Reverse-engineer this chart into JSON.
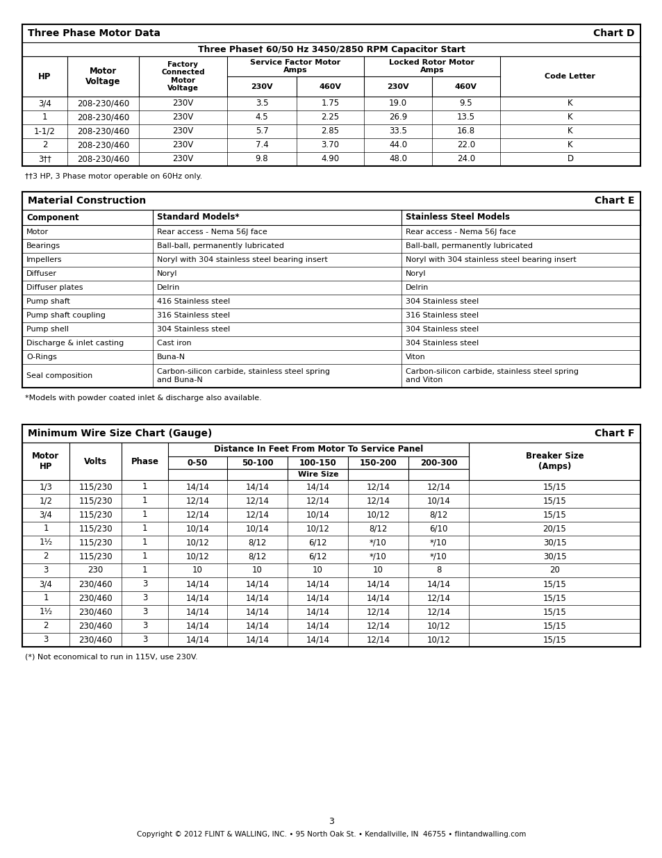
{
  "chart_d": {
    "title": "Three Phase Motor Data",
    "chart_label": "Chart D",
    "subtitle": "Three Phase† 60/50 Hz 3450/2850 RPM Capacitor Start",
    "rows": [
      [
        "3/4",
        "208-230/460",
        "230V",
        "3.5",
        "1.75",
        "19.0",
        "9.5",
        "K"
      ],
      [
        "1",
        "208-230/460",
        "230V",
        "4.5",
        "2.25",
        "26.9",
        "13.5",
        "K"
      ],
      [
        "1-1/2",
        "208-230/460",
        "230V",
        "5.7",
        "2.85",
        "33.5",
        "16.8",
        "K"
      ],
      [
        "2",
        "208-230/460",
        "230V",
        "7.4",
        "3.70",
        "44.0",
        "22.0",
        "K"
      ],
      [
        "3††",
        "208-230/460",
        "230V",
        "9.8",
        "4.90",
        "48.0",
        "24.0",
        "D"
      ]
    ],
    "footnote": "††3 HP, 3 Phase motor operable on 60Hz only."
  },
  "chart_e": {
    "title": "Material Construction",
    "chart_label": "Chart E",
    "col_headers": [
      "Component",
      "Standard Models*",
      "Stainless Steel Models"
    ],
    "rows": [
      [
        "Motor",
        "Rear access - Nema 56J face",
        "Rear access - Nema 56J face"
      ],
      [
        "Bearings",
        "Ball-ball, permanently lubricated",
        "Ball-ball, permanently lubricated"
      ],
      [
        "Impellers",
        "Noryl with 304 stainless steel bearing insert",
        "Noryl with 304 stainless steel bearing insert"
      ],
      [
        "Diffuser",
        "Noryl",
        "Noryl"
      ],
      [
        "Diffuser plates",
        "Delrin",
        "Delrin"
      ],
      [
        "Pump shaft",
        "416 Stainless steel",
        "304 Stainless steel"
      ],
      [
        "Pump shaft coupling",
        "316 Stainless steel",
        "316 Stainless steel"
      ],
      [
        "Pump shell",
        "304 Stainless steel",
        "304 Stainless steel"
      ],
      [
        "Discharge & inlet casting",
        "Cast iron",
        "304 Stainless steel"
      ],
      [
        "O-Rings",
        "Buna-N",
        "Viton"
      ],
      [
        "Seal composition",
        "Carbon-silicon carbide, stainless steel spring\nand Buna-N",
        "Carbon-silicon carbide, stainless steel spring\nand Viton"
      ]
    ],
    "footnote": "*Models with powder coated inlet & discharge also available."
  },
  "chart_f": {
    "title": "Minimum Wire Size Chart (Gauge)",
    "chart_label": "Chart F",
    "distance_label": "Distance In Feet From Motor To Service Panel",
    "dist_cols": [
      "0-50",
      "50-100",
      "100-150",
      "150-200",
      "200-300"
    ],
    "wire_size_label": "Wire Size",
    "rows": [
      [
        "1/3",
        "115/230",
        "1",
        "14/14",
        "14/14",
        "14/14",
        "12/14",
        "12/14",
        "15/15"
      ],
      [
        "1/2",
        "115/230",
        "1",
        "12/14",
        "12/14",
        "12/14",
        "12/14",
        "10/14",
        "15/15"
      ],
      [
        "3/4",
        "115/230",
        "1",
        "12/14",
        "12/14",
        "10/14",
        "10/12",
        "8/12",
        "15/15"
      ],
      [
        "1",
        "115/230",
        "1",
        "10/14",
        "10/14",
        "10/12",
        "8/12",
        "6/10",
        "20/15"
      ],
      [
        "1¹⁄₂",
        "115/230",
        "1",
        "10/12",
        "8/12",
        "6/12",
        "*/10",
        "*/10",
        "30/15"
      ],
      [
        "2",
        "115/230",
        "1",
        "10/12",
        "8/12",
        "6/12",
        "*/10",
        "*/10",
        "30/15"
      ],
      [
        "3",
        "230",
        "1",
        "10",
        "10",
        "10",
        "10",
        "8",
        "20"
      ],
      [
        "3/4",
        "230/460",
        "3",
        "14/14",
        "14/14",
        "14/14",
        "14/14",
        "14/14",
        "15/15"
      ],
      [
        "1",
        "230/460",
        "3",
        "14/14",
        "14/14",
        "14/14",
        "14/14",
        "12/14",
        "15/15"
      ],
      [
        "1¹⁄₂",
        "230/460",
        "3",
        "14/14",
        "14/14",
        "14/14",
        "12/14",
        "12/14",
        "15/15"
      ],
      [
        "2",
        "230/460",
        "3",
        "14/14",
        "14/14",
        "14/14",
        "12/14",
        "10/12",
        "15/15"
      ],
      [
        "3",
        "230/460",
        "3",
        "14/14",
        "14/14",
        "14/14",
        "12/14",
        "10/12",
        "15/15"
      ]
    ],
    "footnote": "(*) Not economical to run in 115V, use 230V."
  },
  "page_number": "3",
  "copyright": "Copyright © 2012 FLINT & WALLING, INC. • 95 North Oak St. • Kendallville, IN  46755 • flintandwalling.com"
}
